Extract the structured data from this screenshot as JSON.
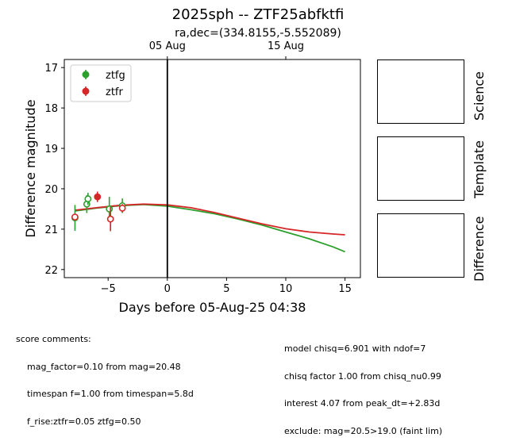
{
  "title": "2025sph -- ZTF25abfktfi",
  "subtitle": "ra,dec=(334.8155,-5.552089)",
  "chart_data": {
    "type": "scatter",
    "title": "2025sph -- ZTF25abfktfi",
    "subtitle": "ra,dec=(334.8155,-5.552089)",
    "xlabel": "Days before 05-Aug-25 04:38",
    "ylabel": "Difference magnitude",
    "xlim": [
      -8.7,
      16.3
    ],
    "ylim": [
      22.2,
      16.8
    ],
    "y_inverted": true,
    "x_ticks": [
      -5,
      0,
      5,
      10,
      15
    ],
    "x_tick_labels": [
      "−5",
      "0",
      "5",
      "10",
      "15"
    ],
    "y_ticks": [
      17,
      18,
      19,
      20,
      21,
      22
    ],
    "y_tick_labels": [
      "17",
      "18",
      "19",
      "20",
      "21",
      "22"
    ],
    "top_axis_ticks": [
      {
        "x": 0,
        "label": "05 Aug"
      },
      {
        "x": 10,
        "label": "15 Aug"
      }
    ],
    "vline_x": 0,
    "legend_position": "top-left",
    "series": [
      {
        "name": "ztfg",
        "color": "#2ca02c",
        "points": [
          {
            "x": -7.8,
            "y": 20.72,
            "err": 0.32,
            "filled": false
          },
          {
            "x": -6.8,
            "y": 20.38,
            "err": 0.22,
            "filled": false
          },
          {
            "x": -6.7,
            "y": 20.25,
            "err": 0.15,
            "filled": false
          },
          {
            "x": -4.9,
            "y": 20.5,
            "err": 0.3,
            "filled": false
          },
          {
            "x": -3.8,
            "y": 20.42,
            "err": 0.18,
            "filled": false
          }
        ],
        "model": [
          [
            -7.8,
            20.55
          ],
          [
            -6,
            20.48
          ],
          [
            -4,
            20.42
          ],
          [
            -2,
            20.39
          ],
          [
            0,
            20.43
          ],
          [
            2,
            20.52
          ],
          [
            4,
            20.62
          ],
          [
            6,
            20.75
          ],
          [
            8,
            20.9
          ],
          [
            10,
            21.07
          ],
          [
            12,
            21.24
          ],
          [
            14,
            21.44
          ],
          [
            15,
            21.56
          ]
        ]
      },
      {
        "name": "ztfr",
        "color": "#d62728",
        "points": [
          {
            "x": -7.8,
            "y": 20.7,
            "err": 0.06,
            "filled": false
          },
          {
            "x": -5.9,
            "y": 20.2,
            "err": 0.13,
            "filled": true
          },
          {
            "x": -4.8,
            "y": 20.75,
            "err": 0.3,
            "filled": false
          },
          {
            "x": -3.8,
            "y": 20.48,
            "err": 0.1,
            "filled": false
          }
        ],
        "model": [
          [
            -7.8,
            20.53
          ],
          [
            -6,
            20.47
          ],
          [
            -4,
            20.41
          ],
          [
            -2,
            20.38
          ],
          [
            0,
            20.4
          ],
          [
            2,
            20.47
          ],
          [
            4,
            20.59
          ],
          [
            6,
            20.73
          ],
          [
            8,
            20.87
          ],
          [
            10,
            20.99
          ],
          [
            12,
            21.07
          ],
          [
            14,
            21.12
          ],
          [
            15,
            21.14
          ]
        ]
      }
    ]
  },
  "cutouts": [
    "Science",
    "Template",
    "Difference"
  ],
  "comments_left": [
    "score comments:",
    "    mag_factor=0.10 from mag=20.48",
    "    timespan f=1.00 from timespan=5.8d",
    "    f_rise:ztfr=0.05 ztfg=0.50"
  ],
  "comments_right": [
    "model chisq=6.901 with ndof=7",
    "chisq factor 1.00 from chisq_nu0.99",
    "interest 4.07 from peak_dt=+2.83d",
    "exclude: mag=20.5>19.0 (faint lim)"
  ]
}
